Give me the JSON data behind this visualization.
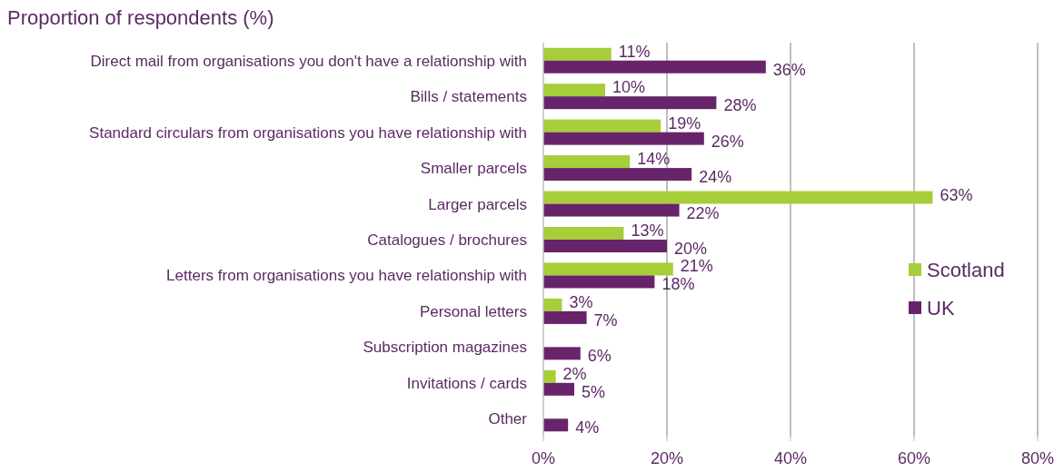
{
  "chart_data": {
    "type": "bar",
    "orientation": "horizontal",
    "title": "Proportion of respondents (%)",
    "categories": [
      "Direct mail from organisations you don't have a relationship with",
      "Bills / statements",
      "Standard circulars from organisations you have relationship with",
      "Smaller parcels",
      "Larger parcels",
      "Catalogues / brochures",
      "Letters from organisations you have relationship with",
      "Personal letters",
      "Subscription magazines",
      "Invitations / cards",
      "Other"
    ],
    "series": [
      {
        "name": "Scotland",
        "color": "#a6ce39",
        "values": [
          11,
          10,
          19,
          14,
          63,
          13,
          21,
          3,
          null,
          2,
          null
        ],
        "value_labels": [
          "11%",
          "10%",
          "19%",
          "14%",
          "63%",
          "13%",
          "21%",
          "3%",
          null,
          "2%",
          null
        ]
      },
      {
        "name": "UK",
        "color": "#68246a",
        "values": [
          36,
          28,
          26,
          24,
          22,
          20,
          18,
          7,
          6,
          5,
          4
        ],
        "value_labels": [
          "36%",
          "28%",
          "26%",
          "24%",
          "22%",
          "20%",
          "18%",
          "7%",
          "6%",
          "5%",
          "4%"
        ]
      }
    ],
    "xlim": [
      0,
      80
    ],
    "xticks": [
      {
        "value": 0,
        "label": "0%"
      },
      {
        "value": 20,
        "label": "20%"
      },
      {
        "value": 40,
        "label": "40%"
      },
      {
        "value": 60,
        "label": "60%"
      },
      {
        "value": 80,
        "label": "80%"
      }
    ],
    "grid": "x",
    "legend": "right"
  }
}
